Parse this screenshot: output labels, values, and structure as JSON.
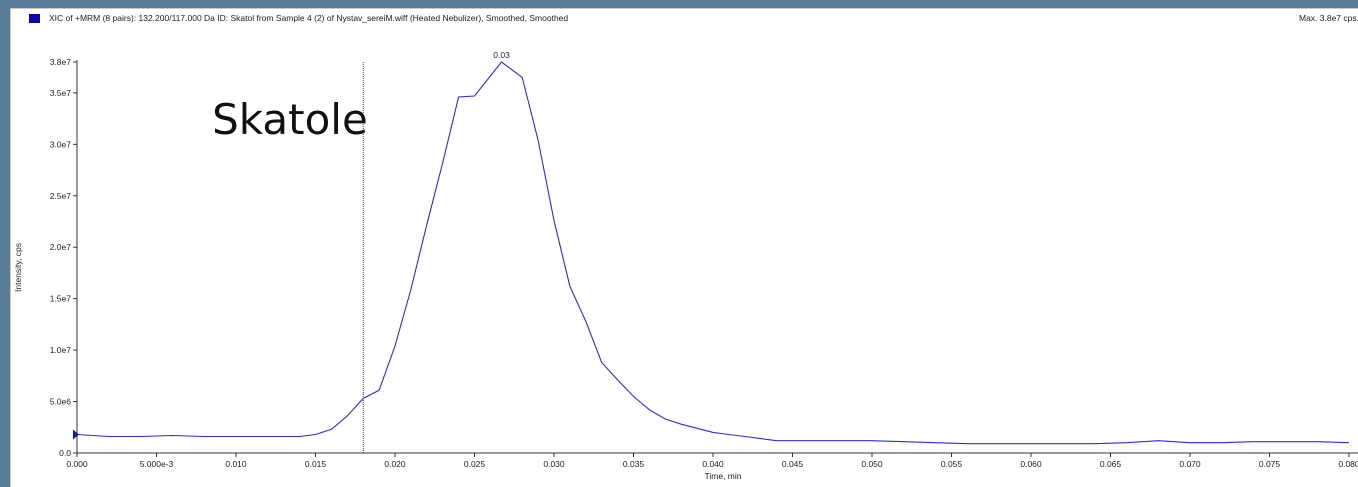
{
  "header": {
    "title": "XIC of +MRM (8 pairs): 132.200/117.000 Da ID: Skatol from Sample 4 (2) of Nystav_sereiM.wiff (Heated Nebulizer), Smoothed, Smoothed",
    "max_label": "Max. 3.8e7 cps."
  },
  "colors": {
    "series": "#2b2bdf",
    "swatch": "#0a0aa8",
    "background": "#5a7d9c"
  },
  "chart_data": {
    "type": "line",
    "title": "",
    "xlabel": "Time, min",
    "ylabel": "Intensity, cps",
    "xlim": [
      0.0,
      0.08
    ],
    "ylim": [
      0,
      38000000.0
    ],
    "grid": false,
    "x_ticks": [
      0.0,
      0.005,
      0.01,
      0.015,
      0.02,
      0.025,
      0.03,
      0.035,
      0.04,
      0.045,
      0.05,
      0.055,
      0.06,
      0.065,
      0.07,
      0.075,
      0.08
    ],
    "x_tick_labels": [
      "0.000",
      "5.000e-3",
      "0.010",
      "0.015",
      "0.020",
      "0.025",
      "0.030",
      "0.035",
      "0.040",
      "0.045",
      "0.050",
      "0.055",
      "0.060",
      "0.065",
      "0.070",
      "0.075",
      "0.080"
    ],
    "y_ticks": [
      0,
      5000000,
      10000000,
      15000000,
      20000000,
      25000000,
      30000000,
      35000000,
      38000000
    ],
    "y_tick_labels": [
      "0.0",
      "5.0e6",
      "1.0e7",
      "1.5e7",
      "2.0e7",
      "2.5e7",
      "3.0e7",
      "3.5e7",
      "3.8e7"
    ],
    "series": [
      {
        "x": [
          0.0,
          0.002,
          0.004,
          0.006,
          0.008,
          0.01,
          0.012,
          0.014,
          0.015,
          0.016,
          0.017,
          0.018,
          0.019,
          0.02,
          0.021,
          0.022,
          0.023,
          0.024,
          0.025,
          0.0267,
          0.028,
          0.029,
          0.03,
          0.031,
          0.032,
          0.033,
          0.034,
          0.035,
          0.036,
          0.037,
          0.038,
          0.039,
          0.04,
          0.041,
          0.042,
          0.043,
          0.044,
          0.046,
          0.048,
          0.05,
          0.052,
          0.054,
          0.056,
          0.058,
          0.06,
          0.062,
          0.064,
          0.066,
          0.068,
          0.07,
          0.072,
          0.074,
          0.076,
          0.078,
          0.08
        ],
        "y": [
          1800000,
          1600000,
          1600000,
          1700000,
          1600000,
          1600000,
          1600000,
          1600000,
          1800000,
          2300000,
          3600000,
          5300000,
          6100000,
          10400000,
          15900000,
          22200000,
          28200000,
          34600000,
          34700000,
          38000000,
          36500000,
          30400000,
          22600000,
          16200000,
          12800000,
          8800000,
          7100000,
          5500000,
          4200000,
          3300000,
          2800000,
          2400000,
          2000000,
          1800000,
          1600000,
          1400000,
          1200000,
          1200000,
          1200000,
          1200000,
          1100000,
          1000000,
          900000,
          900000,
          900000,
          900000,
          900000,
          1000000,
          1200000,
          1000000,
          1000000,
          1100000,
          1100000,
          1100000,
          1000000
        ]
      }
    ],
    "annotations": [
      {
        "text": "0.03",
        "x": 0.0267,
        "y": 38000000
      },
      {
        "text": "Skatole",
        "x": 0.0085,
        "y": 31000000
      }
    ],
    "marker_line_x": 0.018
  }
}
